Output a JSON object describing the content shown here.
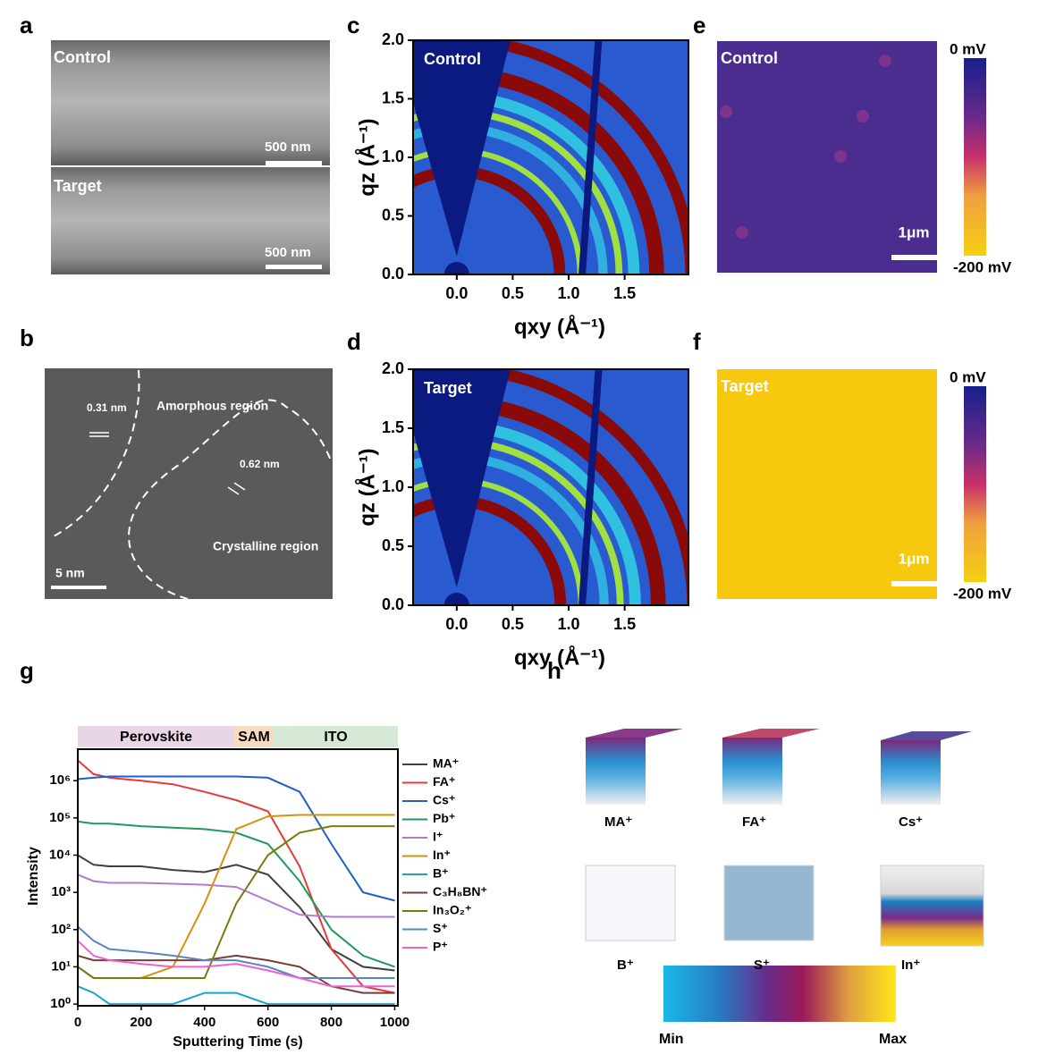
{
  "panel_labels": [
    "a",
    "b",
    "c",
    "d",
    "e",
    "f",
    "g",
    "h"
  ],
  "sem": {
    "images": [
      {
        "label": "Control",
        "scale": "500 nm"
      },
      {
        "label": "Target",
        "scale": "500 nm"
      }
    ]
  },
  "tem": {
    "labels": [
      "0.31 nm",
      "Amorphous region",
      "0.62 nm",
      "Crystalline region"
    ],
    "scale": "5 nm"
  },
  "giwaxs": [
    {
      "label": "Control",
      "xlabel": "qxy  (Å⁻¹)",
      "ylabel": "qz  (Å⁻¹)",
      "xlim": [
        -0.39,
        2.07
      ],
      "ylim": [
        0,
        2
      ],
      "xticks": [
        {
          "value": 0,
          "label": "0.0"
        },
        0.5,
        {
          "value": 1,
          "label": "1.0"
        },
        1.5
      ],
      "yticks": [
        {
          "value": 0,
          "label": "0.0"
        },
        0.5,
        {
          "value": 1,
          "label": "1.0"
        },
        1.5,
        {
          "value": 2,
          "label": "2.0"
        }
      ]
    },
    {
      "label": "Target",
      "xlabel": "qxy  (Å⁻¹)",
      "ylabel": "qz  (Å⁻¹)",
      "xlim": [
        -0.39,
        2.07
      ],
      "ylim": [
        0,
        2
      ],
      "xticks": [
        {
          "value": 0,
          "label": "0.0"
        },
        0.5,
        {
          "value": 1,
          "label": "1.0"
        },
        1.5
      ],
      "yticks": [
        {
          "value": 0,
          "label": "0.0"
        },
        0.5,
        {
          "value": 1,
          "label": "1.0"
        },
        1.5,
        {
          "value": 2,
          "label": "2.0"
        }
      ]
    }
  ],
  "kpfm": [
    {
      "label": "Control",
      "top": "0 mV",
      "bottom": "-200 mV",
      "scale": "1μm",
      "color": "#4b2c8f"
    },
    {
      "label": "Target",
      "top": "0 mV",
      "bottom": "-200 mV",
      "scale": "1μm",
      "color": "#f6c90f"
    }
  ],
  "chart_data": {
    "type": "line",
    "xlabel": "Sputtering Time (s)",
    "ylabel": "Intensity",
    "log_y": true,
    "regions": [
      {
        "name": "Perovskite",
        "color": "#e8d6e6"
      },
      {
        "name": "SAM",
        "color": "#f8dcc0"
      },
      {
        "name": "ITO",
        "color": "#d6e8d6"
      }
    ],
    "x": [
      0,
      50,
      100,
      200,
      300,
      400,
      500,
      600,
      700,
      800,
      900,
      1000
    ],
    "xlim": [
      0,
      1010
    ],
    "ylim": [
      0.9,
      7000000
    ],
    "xticks": [
      0,
      200,
      400,
      600,
      800,
      1000
    ],
    "yticks": [
      {
        "value": 1,
        "label": "10⁰"
      },
      {
        "value": 10,
        "label": "10¹"
      },
      {
        "value": 100,
        "label": "10²"
      },
      {
        "value": 1000,
        "label": "10³"
      },
      {
        "value": 10000,
        "label": "10⁴"
      },
      {
        "value": 100000,
        "label": "10⁵"
      },
      {
        "value": 1000000,
        "label": "10⁶"
      }
    ],
    "series": [
      {
        "name": "MA⁺",
        "color": "#404040",
        "values": [
          10000,
          5500,
          5000,
          5000,
          4000,
          3500,
          5500,
          3000,
          400,
          30,
          10,
          8
        ]
      },
      {
        "name": "FA⁺",
        "color": "#e8393a",
        "values": [
          3500000,
          1500000,
          1200000,
          1000000,
          800000,
          500000,
          300000,
          150000,
          5000,
          30,
          3,
          2
        ]
      },
      {
        "name": "Cs⁺",
        "color": "#1f5fc8",
        "values": [
          1100000,
          1200000,
          1300000,
          1300000,
          1300000,
          1300000,
          1300000,
          1200000,
          500000,
          20000,
          1000,
          600
        ]
      },
      {
        "name": "Pb⁺",
        "color": "#1e9a5a",
        "values": [
          80000,
          70000,
          70000,
          60000,
          55000,
          50000,
          40000,
          20000,
          2000,
          100,
          20,
          10
        ]
      },
      {
        "name": "I⁺",
        "color": "#b57ad0",
        "values": [
          3000,
          2000,
          1800,
          1800,
          1700,
          1600,
          1400,
          600,
          250,
          220,
          220,
          220
        ]
      },
      {
        "name": "In⁺",
        "color": "#d4920e",
        "values": [
          10,
          5,
          5,
          5,
          10,
          500,
          50000,
          110000,
          120000,
          120000,
          120000,
          120000
        ]
      },
      {
        "name": "B⁺",
        "color": "#1aa3c8",
        "values": [
          3,
          2,
          1,
          1,
          1,
          2,
          2,
          1,
          1,
          1,
          1,
          1
        ]
      },
      {
        "name": "C₃H₈BN⁺",
        "color": "#7a3b3b",
        "values": [
          20,
          15,
          15,
          15,
          15,
          15,
          20,
          15,
          10,
          3,
          2,
          2
        ]
      },
      {
        "name": "In₃O₂⁺",
        "color": "#7a7a10",
        "values": [
          10,
          5,
          5,
          5,
          5,
          5,
          500,
          10000,
          40000,
          60000,
          60000,
          60000
        ]
      },
      {
        "name": "S⁺",
        "color": "#5a86c0",
        "values": [
          120,
          50,
          30,
          25,
          20,
          15,
          15,
          10,
          5,
          5,
          5,
          5
        ]
      },
      {
        "name": "P⁺",
        "color": "#f060d0",
        "values": [
          50,
          20,
          15,
          12,
          10,
          10,
          12,
          8,
          5,
          3,
          3,
          3
        ]
      }
    ]
  },
  "tomography": {
    "labels": [
      "MA⁺",
      "FA⁺",
      "Cs⁺",
      "B⁺",
      "S⁺",
      "In⁺"
    ],
    "min": "Min",
    "max": "Max"
  }
}
